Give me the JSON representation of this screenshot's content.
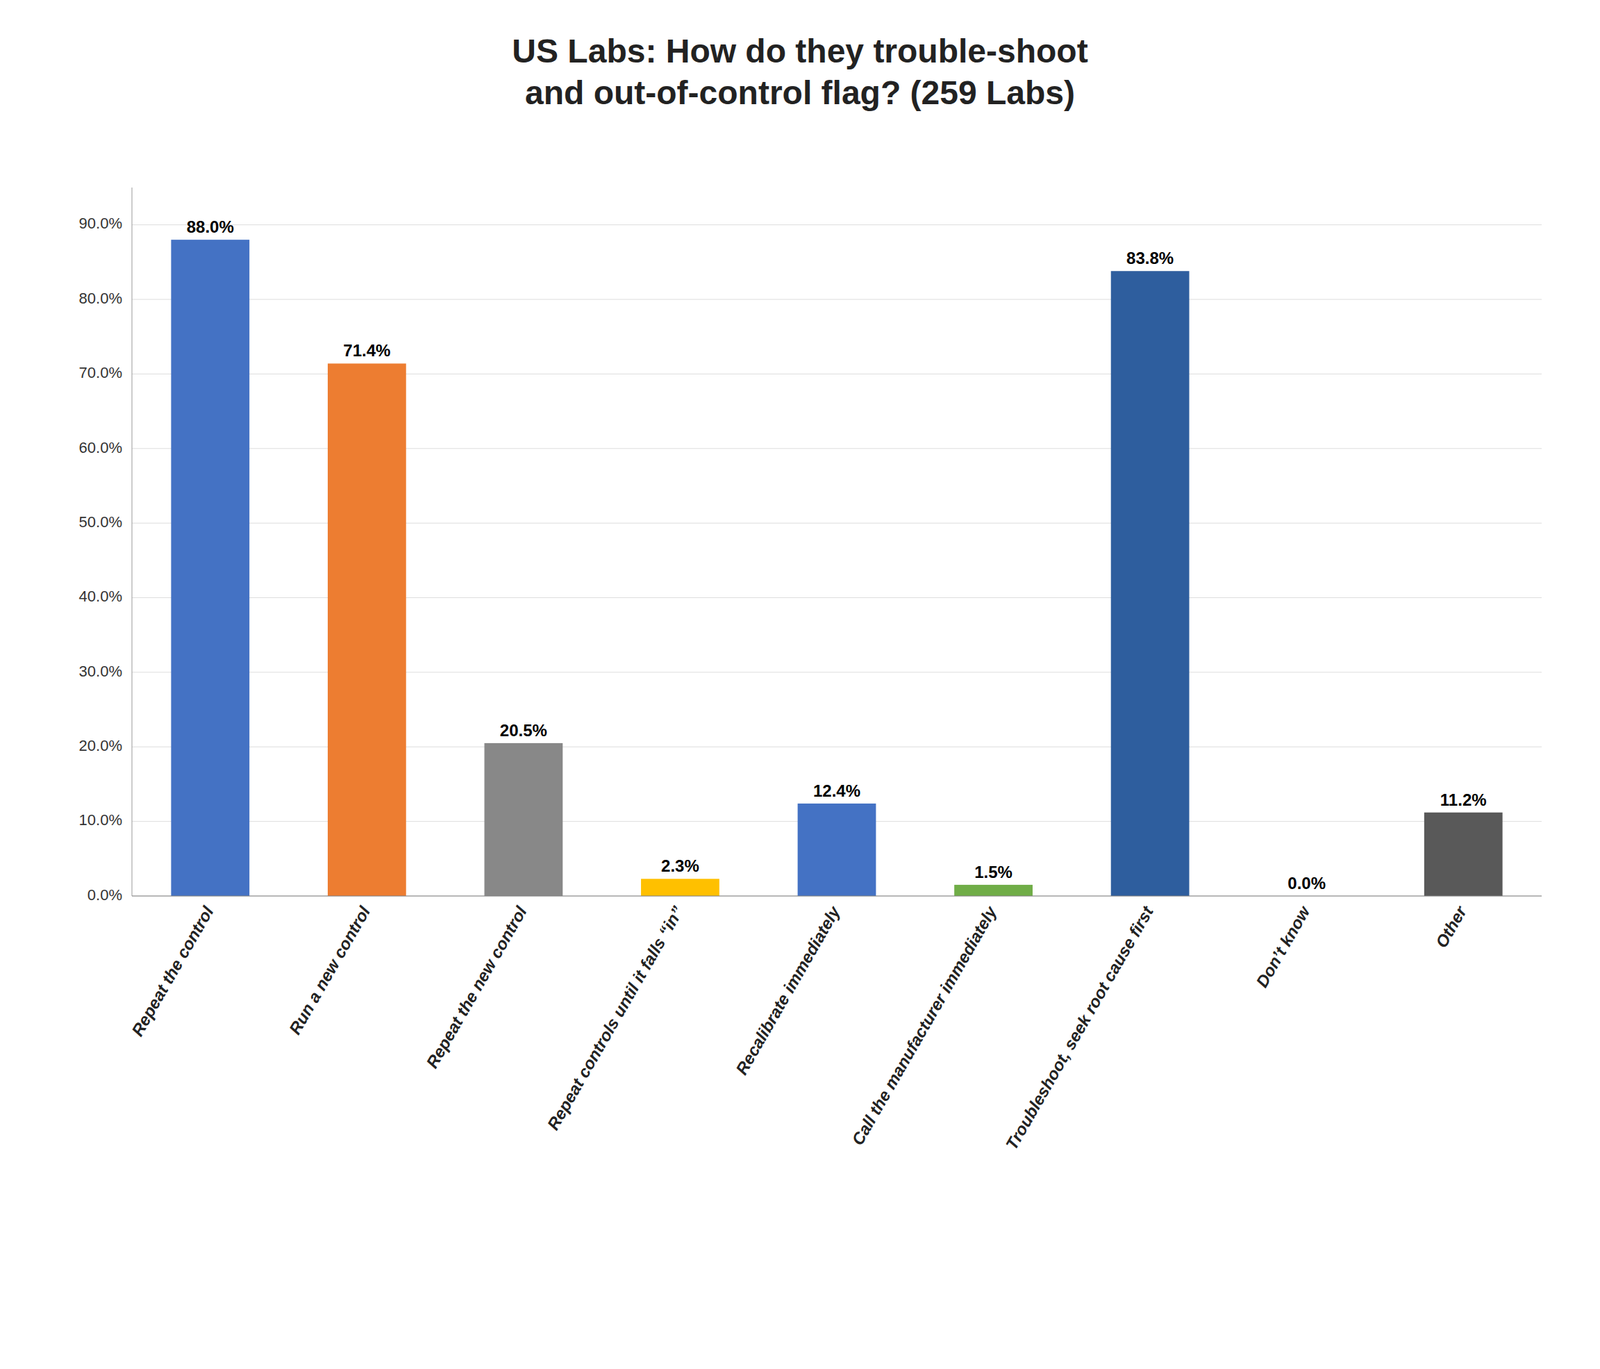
{
  "chart_data": {
    "type": "bar",
    "title": "US Labs: How do they trouble-shoot\nand out-of-control flag? (259 Labs)",
    "categories": [
      "Repeat the control",
      "Run a new control",
      "Repeat the new control",
      "Repeat controls until it falls “in”",
      "Recalibrate immediately",
      "Call the manufacturer immediately",
      "Troubleshoot, seek root cause first",
      "Don’t know",
      "Other"
    ],
    "values": [
      88.0,
      71.4,
      20.5,
      2.3,
      12.4,
      1.5,
      83.8,
      0.0,
      11.2
    ],
    "value_labels": [
      "88.0%",
      "71.4%",
      "20.5%",
      "2.3%",
      "12.4%",
      "1.5%",
      "83.8%",
      "0.0%",
      "11.2%"
    ],
    "colors": [
      "#4472C4",
      "#ED7D31",
      "#888888",
      "#FFC000",
      "#4472C4",
      "#70AD47",
      "#2E5E9E",
      "#888888",
      "#595959"
    ],
    "ylim": [
      0,
      95
    ],
    "yticks": [
      {
        "value": 0,
        "label": "0.0%"
      },
      {
        "value": 10,
        "label": "10.0%"
      },
      {
        "value": 20,
        "label": "20.0%"
      },
      {
        "value": 30,
        "label": "30.0%"
      },
      {
        "value": 40,
        "label": "40.0%"
      },
      {
        "value": 50,
        "label": "50.0%"
      },
      {
        "value": 60,
        "label": "60.0%"
      },
      {
        "value": 70,
        "label": "70.0%"
      },
      {
        "value": 80,
        "label": "80.0%"
      },
      {
        "value": 90,
        "label": "90.0%"
      }
    ],
    "grid": true,
    "data_labels": true
  }
}
